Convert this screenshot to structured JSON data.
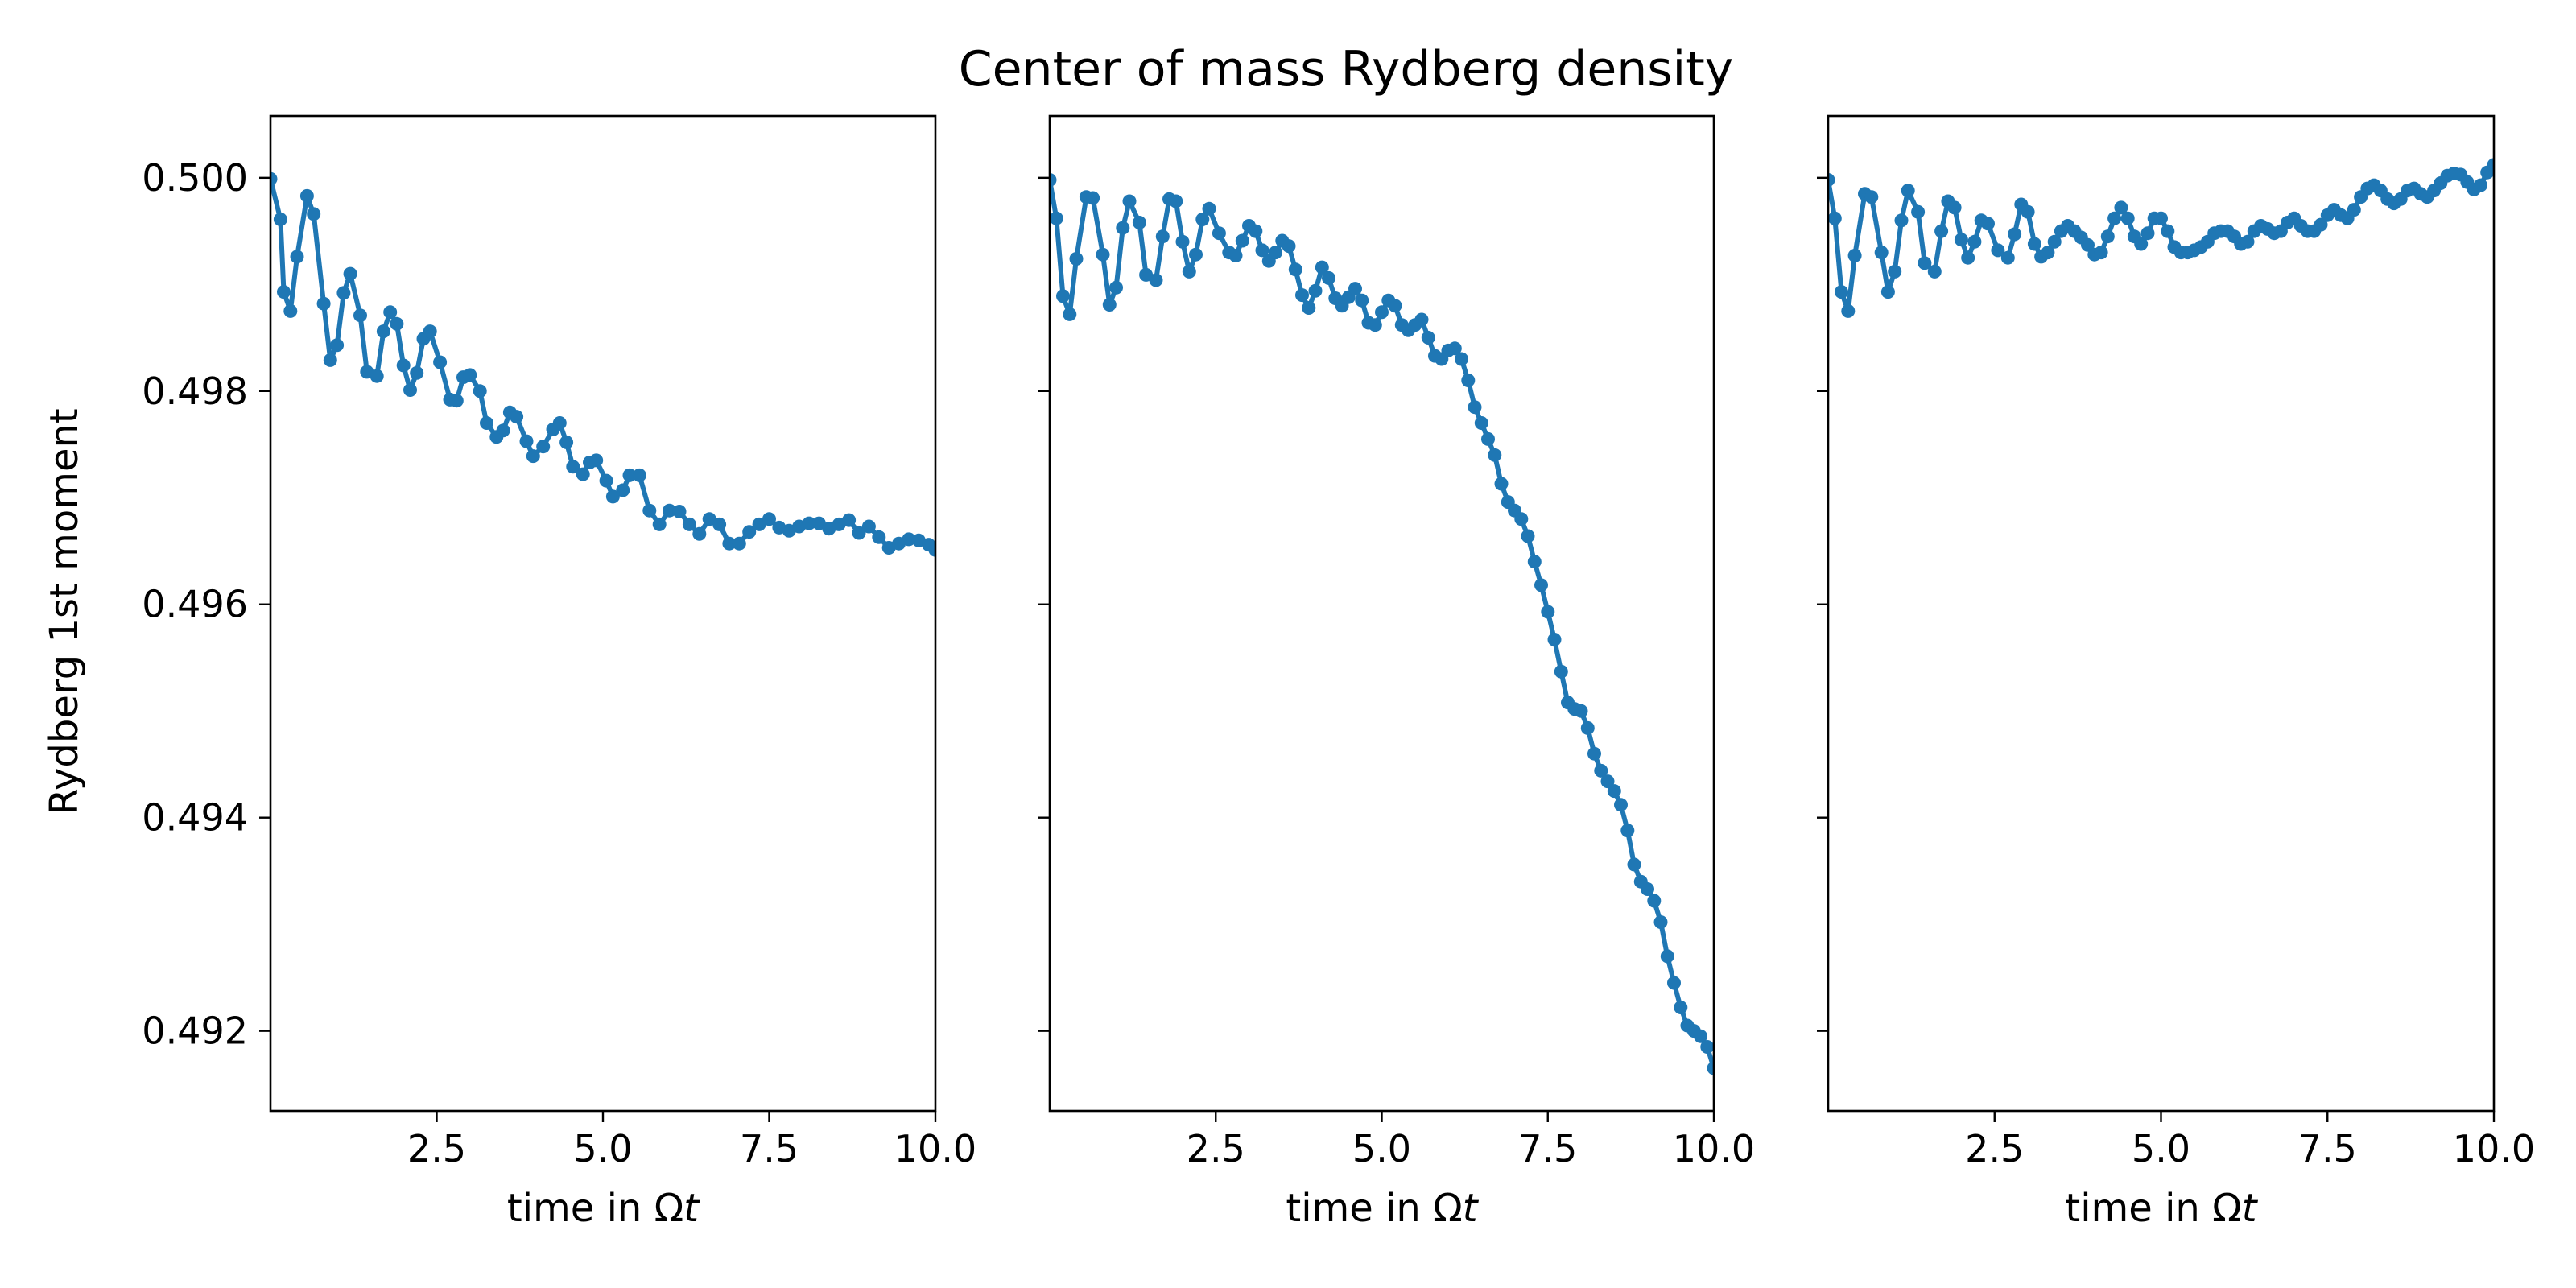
{
  "figure": {
    "title": "Center of mass Rydberg density",
    "ylabel": "Rydberg 1st moment",
    "xlabel_prefix": "time in Ω",
    "xlabel_var": "t",
    "line_color": "#1f77b4"
  },
  "chart_data": [
    {
      "type": "line",
      "xlim": [
        0,
        10
      ],
      "ylim": [
        0.49125,
        0.50058
      ],
      "xticks": [
        "2.5",
        "5.0",
        "7.5",
        "10.0"
      ],
      "yticks": [
        "0.492",
        "0.494",
        "0.496",
        "0.498",
        "0.500"
      ],
      "ylabel": "Rydberg 1st moment",
      "xlabel": "time in Ωt",
      "series": [
        {
          "x": [
            0.0,
            0.15,
            0.2,
            0.3,
            0.4,
            0.55,
            0.65,
            0.8,
            0.9,
            1.0,
            1.1,
            1.2,
            1.35,
            1.45,
            1.6,
            1.7,
            1.8,
            1.9,
            2.0,
            2.1,
            2.2,
            2.3,
            2.4,
            2.55,
            2.7,
            2.8,
            2.9,
            3.0,
            3.15,
            3.25,
            3.4,
            3.5,
            3.6,
            3.7,
            3.85,
            3.95,
            4.1,
            4.25,
            4.35,
            4.45,
            4.55,
            4.7,
            4.8,
            4.9,
            5.05,
            5.15,
            5.3,
            5.4,
            5.55,
            5.7,
            5.85,
            6.0,
            6.15,
            6.3,
            6.45,
            6.6,
            6.75,
            6.9,
            7.05,
            7.2,
            7.35,
            7.5,
            7.65,
            7.8,
            7.95,
            8.1,
            8.25,
            8.4,
            8.55,
            8.7,
            8.85,
            9.0,
            9.15,
            9.3,
            9.45,
            9.6,
            9.75,
            9.9,
            10.0
          ],
          "y": [
            0.49999,
            0.49961,
            0.49893,
            0.49875,
            0.49926,
            0.49983,
            0.49966,
            0.49882,
            0.49829,
            0.49843,
            0.49892,
            0.4991,
            0.49871,
            0.49818,
            0.49814,
            0.49856,
            0.49874,
            0.49863,
            0.49824,
            0.49801,
            0.49817,
            0.49849,
            0.49856,
            0.49827,
            0.49792,
            0.49791,
            0.49813,
            0.49815,
            0.498,
            0.4977,
            0.49757,
            0.49763,
            0.4978,
            0.49776,
            0.49753,
            0.49739,
            0.49748,
            0.49764,
            0.4977,
            0.49752,
            0.49729,
            0.49722,
            0.49733,
            0.49735,
            0.49716,
            0.49701,
            0.49707,
            0.49721,
            0.49721,
            0.49688,
            0.49675,
            0.49688,
            0.49687,
            0.49675,
            0.49666,
            0.4968,
            0.49675,
            0.49657,
            0.49657,
            0.49668,
            0.49675,
            0.4968,
            0.49672,
            0.49669,
            0.49673,
            0.49676,
            0.49676,
            0.49671,
            0.49675,
            0.49679,
            0.49667,
            0.49673,
            0.49663,
            0.49653,
            0.49657,
            0.49661,
            0.4966,
            0.49656,
            0.49651
          ]
        }
      ]
    },
    {
      "type": "line",
      "xlim": [
        0,
        10
      ],
      "ylim": [
        0.49125,
        0.50058
      ],
      "xticks": [
        "2.5",
        "5.0",
        "7.5",
        "10.0"
      ],
      "yticks": [
        "0.492",
        "0.494",
        "0.496",
        "0.498",
        "0.500"
      ],
      "xlabel": "time in Ωt",
      "series": [
        {
          "x": [
            0.0,
            0.1,
            0.2,
            0.3,
            0.4,
            0.55,
            0.65,
            0.8,
            0.9,
            1.0,
            1.1,
            1.2,
            1.35,
            1.45,
            1.6,
            1.7,
            1.8,
            1.9,
            2.0,
            2.1,
            2.2,
            2.3,
            2.4,
            2.55,
            2.7,
            2.8,
            2.9,
            3.0,
            3.1,
            3.2,
            3.3,
            3.4,
            3.5,
            3.6,
            3.7,
            3.8,
            3.9,
            4.0,
            4.1,
            4.2,
            4.3,
            4.4,
            4.5,
            4.6,
            4.7,
            4.8,
            4.9,
            5.0,
            5.1,
            5.2,
            5.3,
            5.4,
            5.5,
            5.6,
            5.7,
            5.8,
            5.9,
            6.0,
            6.1,
            6.2,
            6.3,
            6.4,
            6.5,
            6.6,
            6.7,
            6.8,
            6.9,
            7.0,
            7.1,
            7.2,
            7.3,
            7.4,
            7.5,
            7.6,
            7.7,
            7.8,
            7.9,
            8.0,
            8.1,
            8.2,
            8.3,
            8.4,
            8.5,
            8.6,
            8.7,
            8.8,
            8.9,
            9.0,
            9.1,
            9.2,
            9.3,
            9.4,
            9.5,
            9.6,
            9.7,
            9.8,
            9.9,
            10.0
          ],
          "y": [
            0.49998,
            0.49962,
            0.49889,
            0.49872,
            0.49924,
            0.49982,
            0.49981,
            0.49928,
            0.49881,
            0.49897,
            0.49953,
            0.49978,
            0.49958,
            0.49909,
            0.49904,
            0.49945,
            0.4998,
            0.49978,
            0.4994,
            0.49912,
            0.49928,
            0.49961,
            0.49971,
            0.49948,
            0.4993,
            0.49927,
            0.49941,
            0.49955,
            0.4995,
            0.49932,
            0.49922,
            0.4993,
            0.49941,
            0.49936,
            0.49914,
            0.4989,
            0.49878,
            0.49894,
            0.49916,
            0.49906,
            0.49887,
            0.4988,
            0.49888,
            0.49896,
            0.49885,
            0.49864,
            0.49862,
            0.49874,
            0.49885,
            0.4988,
            0.49862,
            0.49857,
            0.49862,
            0.49867,
            0.4985,
            0.49833,
            0.4983,
            0.49838,
            0.4984,
            0.4983,
            0.4981,
            0.49785,
            0.4977,
            0.49755,
            0.4974,
            0.49713,
            0.49696,
            0.49688,
            0.4968,
            0.49664,
            0.4964,
            0.49618,
            0.49593,
            0.49567,
            0.49537,
            0.49508,
            0.49502,
            0.495,
            0.49484,
            0.4946,
            0.49444,
            0.49434,
            0.49425,
            0.49412,
            0.49388,
            0.49356,
            0.4934,
            0.49333,
            0.49322,
            0.49302,
            0.4927,
            0.49245,
            0.49222,
            0.49205,
            0.492,
            0.49195,
            0.49185,
            0.49165
          ]
        }
      ]
    },
    {
      "type": "line",
      "xlim": [
        0,
        10
      ],
      "ylim": [
        0.49125,
        0.50058
      ],
      "xticks": [
        "2.5",
        "5.0",
        "7.5",
        "10.0"
      ],
      "yticks": [
        "0.492",
        "0.494",
        "0.496",
        "0.498",
        "0.500"
      ],
      "xlabel": "time in Ωt",
      "series": [
        {
          "x": [
            0.0,
            0.1,
            0.2,
            0.3,
            0.4,
            0.55,
            0.65,
            0.8,
            0.9,
            1.0,
            1.1,
            1.2,
            1.35,
            1.45,
            1.6,
            1.7,
            1.8,
            1.9,
            2.0,
            2.1,
            2.2,
            2.3,
            2.4,
            2.55,
            2.7,
            2.8,
            2.9,
            3.0,
            3.1,
            3.2,
            3.3,
            3.4,
            3.5,
            3.6,
            3.7,
            3.8,
            3.9,
            4.0,
            4.1,
            4.2,
            4.3,
            4.4,
            4.5,
            4.6,
            4.7,
            4.8,
            4.9,
            5.0,
            5.1,
            5.2,
            5.3,
            5.4,
            5.5,
            5.6,
            5.7,
            5.8,
            5.9,
            6.0,
            6.1,
            6.2,
            6.3,
            6.4,
            6.5,
            6.6,
            6.7,
            6.8,
            6.9,
            7.0,
            7.1,
            7.2,
            7.3,
            7.4,
            7.5,
            7.6,
            7.7,
            7.8,
            7.9,
            8.0,
            8.1,
            8.2,
            8.3,
            8.4,
            8.5,
            8.6,
            8.7,
            8.8,
            8.9,
            9.0,
            9.1,
            9.2,
            9.3,
            9.4,
            9.5,
            9.6,
            9.7,
            9.8,
            9.9,
            10.0
          ],
          "y": [
            0.49998,
            0.49962,
            0.49893,
            0.49875,
            0.49927,
            0.49985,
            0.49982,
            0.4993,
            0.49893,
            0.49912,
            0.4996,
            0.49988,
            0.49968,
            0.4992,
            0.49912,
            0.4995,
            0.49978,
            0.49972,
            0.49942,
            0.49925,
            0.4994,
            0.4996,
            0.49957,
            0.49932,
            0.49925,
            0.49947,
            0.49975,
            0.49968,
            0.49938,
            0.49926,
            0.4993,
            0.4994,
            0.4995,
            0.49955,
            0.4995,
            0.49944,
            0.49937,
            0.49928,
            0.4993,
            0.49945,
            0.49962,
            0.49972,
            0.49962,
            0.49945,
            0.49938,
            0.49948,
            0.49962,
            0.49962,
            0.4995,
            0.49935,
            0.4993,
            0.4993,
            0.49932,
            0.49935,
            0.4994,
            0.49948,
            0.4995,
            0.4995,
            0.49945,
            0.49938,
            0.4994,
            0.4995,
            0.49955,
            0.49952,
            0.49948,
            0.4995,
            0.49958,
            0.49962,
            0.49955,
            0.4995,
            0.4995,
            0.49956,
            0.49965,
            0.4997,
            0.49965,
            0.49962,
            0.4997,
            0.49982,
            0.4999,
            0.49993,
            0.49988,
            0.4998,
            0.49976,
            0.4998,
            0.49988,
            0.4999,
            0.49985,
            0.49982,
            0.49988,
            0.49995,
            0.50002,
            0.50004,
            0.50003,
            0.49996,
            0.49989,
            0.49993,
            0.50005,
            0.50012
          ]
        }
      ]
    }
  ]
}
